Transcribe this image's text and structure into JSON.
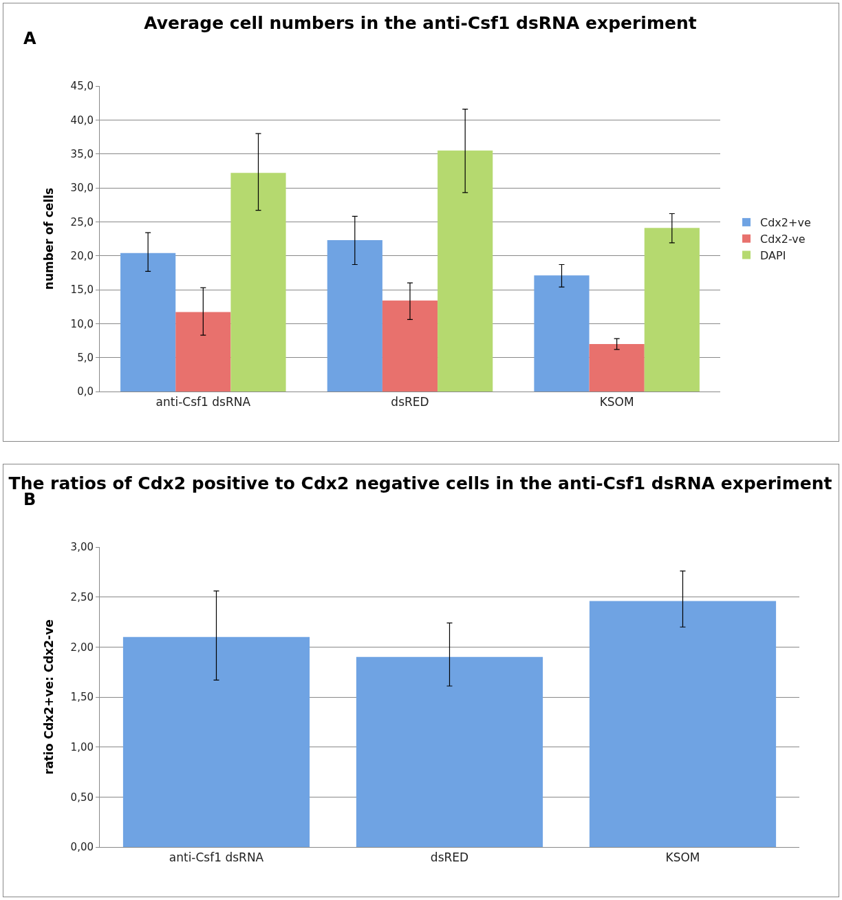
{
  "chart_data": [
    {
      "type": "bar",
      "title": "Average cell numbers in the anti-Csf1 dsRNA experiment",
      "ylabel": "number of cells",
      "annotations": [
        "A"
      ],
      "categories": [
        "anti-Csf1 dsRNA",
        "dsRED",
        "KSOM"
      ],
      "series": [
        {
          "name": "Cdx2+ve",
          "color": "#6fa3e3",
          "values": [
            20.4,
            22.3,
            17.1
          ],
          "errors": [
            [
              17.7,
              23.4
            ],
            [
              18.7,
              25.8
            ],
            [
              15.4,
              18.7
            ]
          ]
        },
        {
          "name": "Cdx2-ve",
          "color": "#e8716d",
          "values": [
            11.7,
            13.4,
            7.0
          ],
          "errors": [
            [
              8.3,
              15.3
            ],
            [
              10.6,
              16.0
            ],
            [
              6.2,
              7.8
            ]
          ]
        },
        {
          "name": "DAPI",
          "color": "#b5d96f",
          "values": [
            32.2,
            35.5,
            24.1
          ],
          "errors": [
            [
              26.7,
              38.0
            ],
            [
              29.3,
              41.6
            ],
            [
              21.9,
              26.2
            ]
          ]
        }
      ],
      "ylim": [
        0,
        45
      ],
      "yticks": [
        {
          "value": 0,
          "label": "0,0"
        },
        {
          "value": 5,
          "label": "5,0"
        },
        {
          "value": 10,
          "label": "10,0"
        },
        {
          "value": 15,
          "label": "15,0"
        },
        {
          "value": 20,
          "label": "20,0"
        },
        {
          "value": 25,
          "label": "25,0"
        },
        {
          "value": 30,
          "label": "30,0"
        },
        {
          "value": 35,
          "label": "35,0"
        },
        {
          "value": 40,
          "label": "40,0"
        },
        {
          "value": 45,
          "label": "45,0"
        }
      ],
      "grid": "y",
      "legend": "right"
    },
    {
      "type": "bar",
      "title": "The ratios of Cdx2 positive to Cdx2 negative cells in the anti-Csf1 dsRNA experiment",
      "ylabel": "ratio Cdx2+ve: Cdx2-ve",
      "annotations": [
        "B"
      ],
      "categories": [
        "anti-Csf1 dsRNA",
        "dsRED",
        "KSOM"
      ],
      "series": [
        {
          "color": "#6fa3e3",
          "values": [
            2.1,
            1.9,
            2.46
          ],
          "errors": [
            [
              1.67,
              2.56
            ],
            [
              1.61,
              2.24
            ],
            [
              2.2,
              2.76
            ]
          ]
        }
      ],
      "ylim": [
        0,
        3
      ],
      "yticks": [
        {
          "value": 0,
          "label": "0,00"
        },
        {
          "value": 0.5,
          "label": "0,50"
        },
        {
          "value": 1,
          "label": "1,00"
        },
        {
          "value": 1.5,
          "label": "1,50"
        },
        {
          "value": 2,
          "label": "2,00"
        },
        {
          "value": 2.5,
          "label": "2,50"
        },
        {
          "value": 3,
          "label": "3,00"
        }
      ],
      "grid": "y"
    }
  ]
}
